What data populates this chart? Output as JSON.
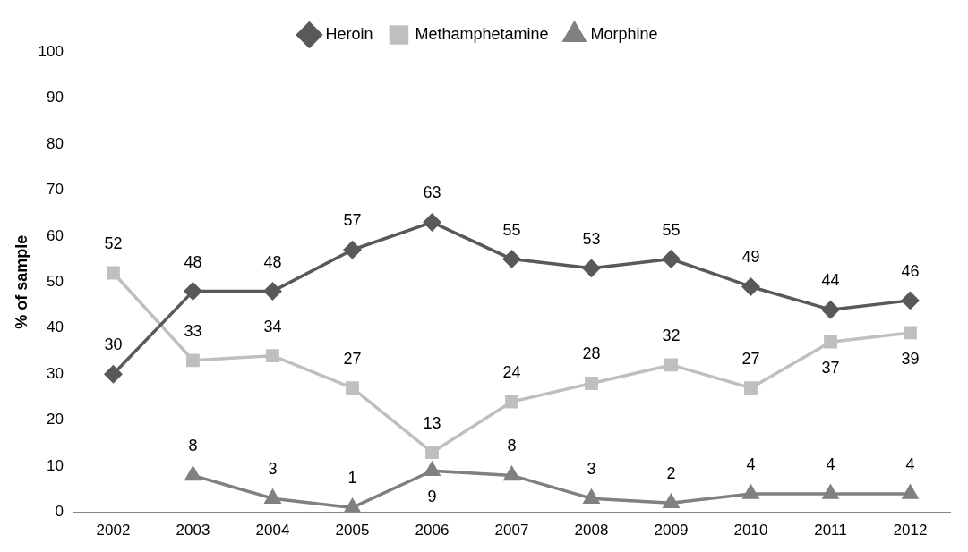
{
  "chart_data": {
    "type": "line",
    "ylabel": "% of sample",
    "categories": [
      "2002",
      "2003",
      "2004",
      "2005",
      "2006",
      "2007",
      "2008",
      "2009",
      "2010",
      "2011",
      "2012"
    ],
    "series": [
      {
        "name": "Heroin",
        "color": "#595959",
        "marker": "diamond",
        "values": [
          30,
          48,
          48,
          57,
          63,
          55,
          53,
          55,
          49,
          44,
          46
        ]
      },
      {
        "name": "Methamphetamine",
        "color": "#bfbfbf",
        "marker": "square",
        "values": [
          52,
          33,
          34,
          27,
          13,
          24,
          28,
          32,
          27,
          37,
          39
        ]
      },
      {
        "name": "Morphine",
        "color": "#808080",
        "marker": "triangle",
        "values": [
          null,
          8,
          3,
          1,
          9,
          8,
          3,
          2,
          4,
          4,
          4
        ]
      }
    ],
    "ylim": [
      0,
      100
    ],
    "yticks": [
      0,
      10,
      20,
      30,
      40,
      50,
      60,
      70,
      80,
      90,
      100
    ],
    "grid": false,
    "legend": "top",
    "data_labels": true,
    "line_style": "solid"
  }
}
